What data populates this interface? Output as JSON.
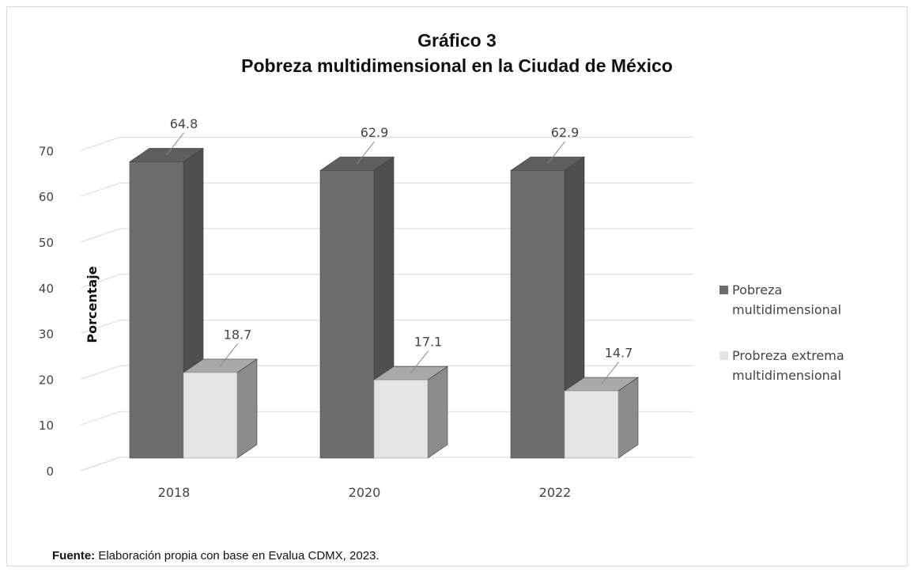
{
  "title": "Gráfico 3",
  "subtitle": "Pobreza multidimensional en la Ciudad de México",
  "source": {
    "label": "Fuente:",
    "text": " Elaboración propia con base en Evalua CDMX, 2023."
  },
  "colors": {
    "series1_front": "#6d6d6d",
    "series1_side": "#4f4f4f",
    "series1_top": "#5e5e5e",
    "series2_front": "#e4e4e4",
    "series2_side": "#8c8c8c",
    "series2_top": "#a9a9a9",
    "grid": "#d9d9d9",
    "axis_text": "#444444"
  },
  "chart_data": {
    "type": "bar",
    "categories": [
      "2018",
      "2020",
      "2022"
    ],
    "series": [
      {
        "name": "Pobreza multidimensional",
        "values": [
          64.8,
          62.9,
          62.9
        ]
      },
      {
        "name": "Probreza extrema multidimensional",
        "values": [
          18.7,
          17.1,
          14.7
        ]
      }
    ],
    "yticks": [
      "0",
      "10",
      "20",
      "30",
      "40",
      "50",
      "60",
      "70"
    ],
    "ylabel": "Porcentaje",
    "xlabel": "",
    "ylim": [
      0,
      70
    ],
    "grid": true,
    "legend_position": "right",
    "data_labels": [
      "64.8",
      "62.9",
      "62.9",
      "18.7",
      "17.1",
      "14.7"
    ],
    "style": "3d-column"
  },
  "legend": [
    {
      "line1": "Pobreza",
      "line2": "multidimensional"
    },
    {
      "line1": "Probreza extrema",
      "line2": "multidimensional"
    }
  ]
}
